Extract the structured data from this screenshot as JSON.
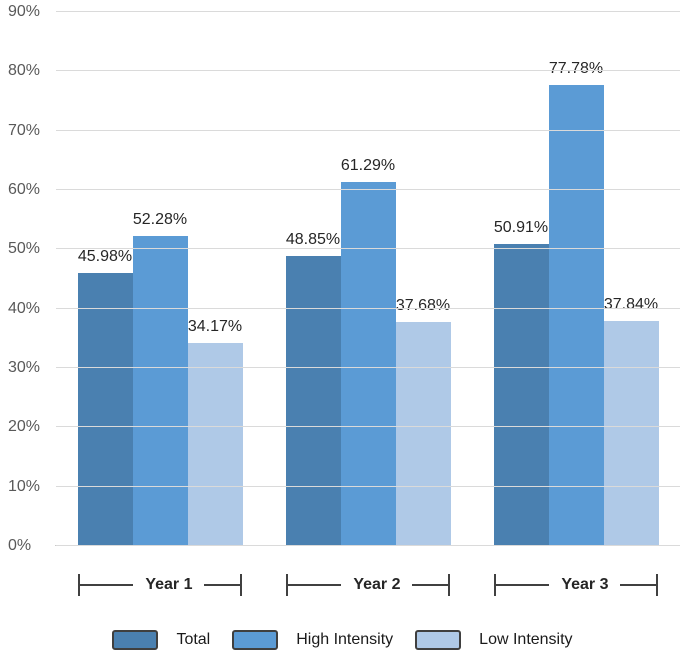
{
  "chart_data": {
    "type": "bar",
    "title": "",
    "xlabel": "",
    "ylabel": "",
    "categories": [
      "Year 1",
      "Year 2",
      "Year 3"
    ],
    "series": [
      {
        "name": "Total",
        "color": "#4A80B0",
        "values": [
          45.98,
          48.85,
          50.91
        ]
      },
      {
        "name": "High Intensity",
        "color": "#5B9BD5",
        "values": [
          52.28,
          61.29,
          77.78
        ]
      },
      {
        "name": "Low Intensity",
        "color": "#AFC9E7",
        "values": [
          34.17,
          37.68,
          37.84
        ]
      }
    ],
    "data_labels": [
      "45.98%",
      "52.28%",
      "34.17%",
      "48.85%",
      "61.29%",
      "37.68%",
      "50.91%",
      "77.78%",
      "37.84%"
    ],
    "value_suffix": "%",
    "ylim": [
      0,
      90
    ],
    "ytick_values": [
      0,
      10,
      20,
      30,
      40,
      50,
      60,
      70,
      80,
      90
    ],
    "ytick_labels": [
      "0%",
      "10%",
      "20%",
      "30%",
      "40%",
      "50%",
      "60%",
      "70%",
      "80%",
      "90%"
    ],
    "grid": true,
    "legend_position": "bottom"
  },
  "colors": {
    "background": "#ffffff",
    "gridline": "#dadada",
    "axis_line": "#c9c9c9",
    "tick_text": "#595959",
    "data_label_text": "#262626",
    "bracket": "#404040",
    "legend_border": "#3f3f3f"
  }
}
